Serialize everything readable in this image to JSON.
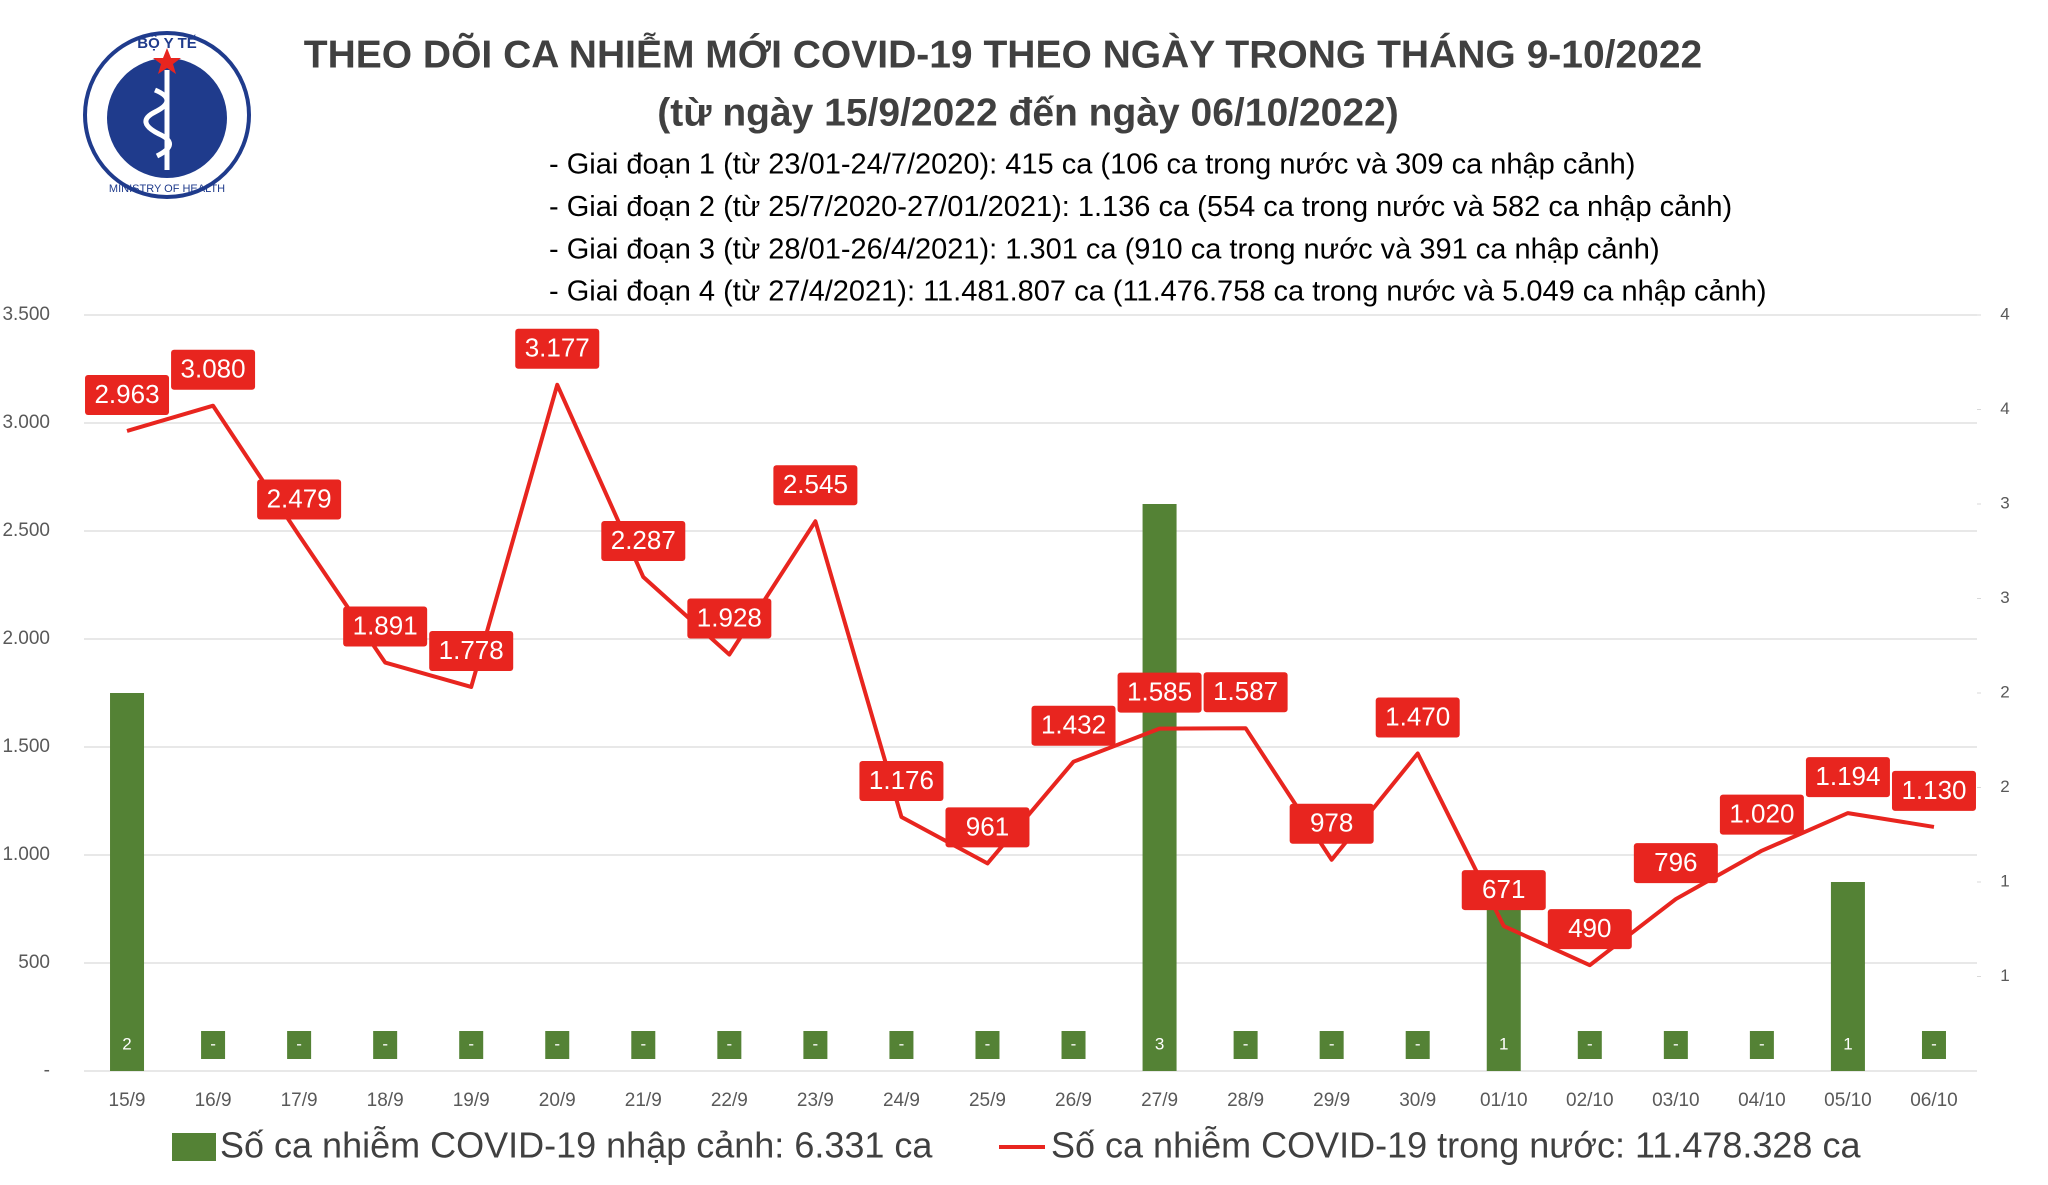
{
  "logo": {
    "top_text": "BỘ Y TẾ",
    "bottom_text": "MINISTRY OF HEALTH"
  },
  "chart_data": {
    "type": "bar-line",
    "title": "THEO DÕI CA NHIỄM MỚI COVID-19 THEO NGÀY TRONG THÁNG 9-10/2022",
    "subtitle": "(từ ngày 15/9/2022 đến ngày 06/10/2022)",
    "notes": [
      "- Giai đoạn 1 (từ 23/01-24/7/2020): 415 ca (106 ca trong nước và 309 ca nhập cảnh)",
      "- Giai đoạn 2 (từ 25/7/2020-27/01/2021): 1.136 ca (554 ca trong nước và 582 ca nhập cảnh)",
      "- Giai đoạn 3 (từ 28/01-26/4/2021): 1.301 ca (910 ca trong nước và 391 ca nhập cảnh)",
      "- Giai đoạn 4 (từ 27/4/2021): 11.481.807 ca (11.476.758 ca trong nước và 5.049 ca nhập cảnh)"
    ],
    "categories": [
      "15/9",
      "16/9",
      "17/9",
      "18/9",
      "19/9",
      "20/9",
      "21/9",
      "22/9",
      "23/9",
      "24/9",
      "25/9",
      "26/9",
      "27/9",
      "28/9",
      "29/9",
      "30/9",
      "01/10",
      "02/10",
      "03/10",
      "04/10",
      "05/10",
      "06/10"
    ],
    "series": [
      {
        "name": "Số ca nhiễm COVID-19 nhập cảnh: 6.331 ca",
        "type": "bar",
        "axis": "y2",
        "color": "#548235",
        "values": [
          2,
          0,
          0,
          0,
          0,
          0,
          0,
          0,
          0,
          0,
          0,
          0,
          3,
          0,
          0,
          0,
          1,
          0,
          0,
          0,
          1,
          0
        ],
        "value_labels": [
          "2",
          "-",
          "-",
          "-",
          "-",
          "-",
          "-",
          "-",
          "-",
          "-",
          "-",
          "-",
          "3",
          "-",
          "-",
          "-",
          "1",
          "-",
          "-",
          "-",
          "1",
          "-"
        ]
      },
      {
        "name": "Số ca nhiễm COVID-19 trong nước: 11.478.328 ca",
        "type": "line",
        "color": "#e8251f",
        "values": [
          2963,
          3080,
          2479,
          1891,
          1778,
          3177,
          2287,
          1928,
          2545,
          1176,
          961,
          1432,
          1585,
          1587,
          978,
          1470,
          671,
          490,
          796,
          1020,
          1194,
          1130
        ],
        "value_labels": [
          "2.963",
          "3.080",
          "2.479",
          "1.891",
          "1.778",
          "3.177",
          "2.287",
          "1.928",
          "2.545",
          "1.176",
          "961",
          "1.432",
          "1.585",
          "1.587",
          "978",
          "1.470",
          "671",
          "490",
          "796",
          "1.020",
          "1.194",
          "1.130"
        ]
      }
    ],
    "ylim": [
      0,
      3500
    ],
    "yticks": [
      {
        "value": 0,
        "label": "-"
      },
      500,
      {
        "value": 1000,
        "label": "1.000"
      },
      {
        "value": 1500,
        "label": "1.500"
      },
      {
        "value": 2000,
        "label": "2.000"
      },
      {
        "value": 2500,
        "label": "2.500"
      },
      {
        "value": 3000,
        "label": "3.000"
      },
      {
        "value": 3500,
        "label": "3.500"
      }
    ],
    "y2lim": [
      0,
      4
    ],
    "y2ticks": [
      {
        "value": 0.5,
        "label": "1"
      },
      1,
      {
        "value": 1.5,
        "label": "2"
      },
      2,
      {
        "value": 2.5,
        "label": "3"
      },
      3,
      {
        "value": 3.5,
        "label": "4"
      },
      4
    ],
    "grid": true
  }
}
